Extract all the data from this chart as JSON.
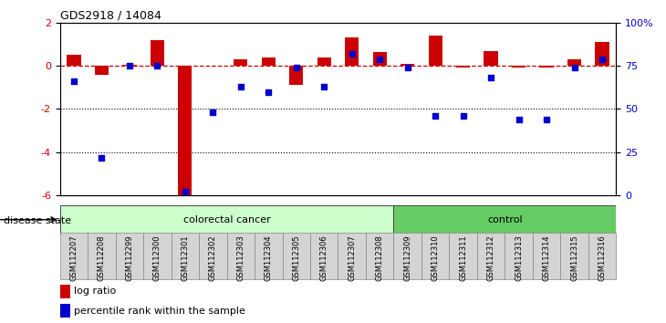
{
  "title": "GDS2918 / 14084",
  "samples": [
    "GSM112207",
    "GSM112208",
    "GSM112299",
    "GSM112300",
    "GSM112301",
    "GSM112302",
    "GSM112303",
    "GSM112304",
    "GSM112305",
    "GSM112306",
    "GSM112307",
    "GSM112308",
    "GSM112309",
    "GSM112310",
    "GSM112311",
    "GSM112312",
    "GSM112313",
    "GSM112314",
    "GSM112315",
    "GSM112316"
  ],
  "log_ratio": [
    0.5,
    -0.4,
    0.05,
    1.2,
    -6.1,
    0.0,
    0.3,
    0.4,
    -0.9,
    0.4,
    1.3,
    0.65,
    0.1,
    1.4,
    -0.1,
    0.7,
    -0.1,
    -0.1,
    0.3,
    1.1
  ],
  "percentile": [
    66,
    22,
    75,
    75,
    2,
    48,
    63,
    60,
    74,
    63,
    82,
    79,
    74,
    46,
    46,
    68,
    44,
    44,
    74,
    79
  ],
  "colorectal_cancer_count": 12,
  "control_count": 8,
  "bar_color": "#cc0000",
  "dot_color": "#0000cc",
  "ref_line_color": "#cc0000",
  "ylim_left": [
    -6,
    2
  ],
  "ylim_right": [
    0,
    100
  ],
  "yticks_left": [
    2,
    0,
    -2,
    -4,
    -6
  ],
  "yticks_right": [
    100,
    75,
    50,
    25,
    0
  ],
  "ytick_labels_right": [
    "100%",
    "75",
    "50",
    "25",
    "0"
  ],
  "colorectal_color": "#ccffcc",
  "control_color": "#66cc66",
  "group_label_colorectal": "colorectal cancer",
  "group_label_control": "control",
  "disease_state_label": "disease state",
  "legend_bar_label": "log ratio",
  "legend_dot_label": "percentile rank within the sample",
  "background_color": "#ffffff",
  "tick_label_color_right": "#0000cc"
}
